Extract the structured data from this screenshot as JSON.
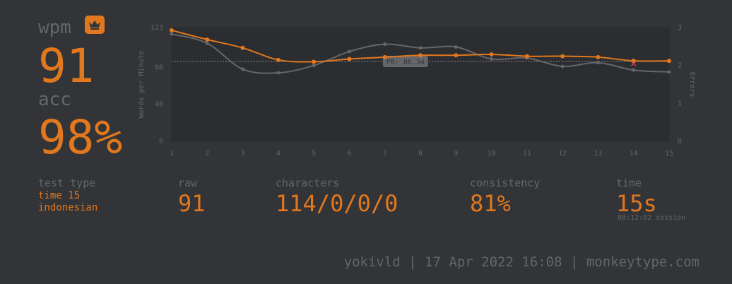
{
  "summary": {
    "wpm_label": "wpm",
    "wpm_value": "91",
    "acc_label": "acc",
    "acc_value": "98%",
    "badge_icon": "crown-icon"
  },
  "stats": {
    "test_type_label": "test type",
    "test_type_mode": "time 15",
    "test_type_language": "indonesian",
    "raw_label": "raw",
    "raw_value": "91",
    "characters_label": "characters",
    "characters_value": "114/0/0/0",
    "consistency_label": "consistency",
    "consistency_value": "81%",
    "time_label": "time",
    "time_value": "15s",
    "session_note": "00:12:02 session"
  },
  "footer": {
    "text": "yokivld | 17 Apr 2022 16:08 | monkeytype.com"
  },
  "colors": {
    "background": "#323437",
    "accent": "#e2781e",
    "muted": "#646669",
    "error": "#ca4754"
  },
  "chart_data": {
    "type": "line",
    "ylabel": "Words per Minute",
    "y2label": "Errors",
    "ylim": [
      0,
      123
    ],
    "y2lim": [
      0,
      3
    ],
    "yticks": [
      "0",
      "40",
      "80",
      "123"
    ],
    "y2ticks": [
      "0",
      "1",
      "2",
      "3"
    ],
    "x": [
      1,
      2,
      3,
      4,
      5,
      6,
      7,
      8,
      9,
      10,
      11,
      12,
      13,
      14,
      15
    ],
    "series": [
      {
        "name": "wpm",
        "color": "#e2781e",
        "values": [
          120,
          110,
          101,
          88,
          86,
          89,
          91,
          93,
          93,
          94,
          92,
          92,
          91,
          87,
          87
        ]
      },
      {
        "name": "raw",
        "color": "#646669",
        "values": [
          116,
          106,
          78,
          74,
          82,
          97,
          105,
          101,
          102,
          89,
          90,
          81,
          85,
          77,
          75
        ]
      }
    ],
    "errors": [
      {
        "x": 14,
        "value": 1
      }
    ],
    "pb": {
      "value": 86.34,
      "label": "PB: 86.34"
    },
    "grid": true
  }
}
